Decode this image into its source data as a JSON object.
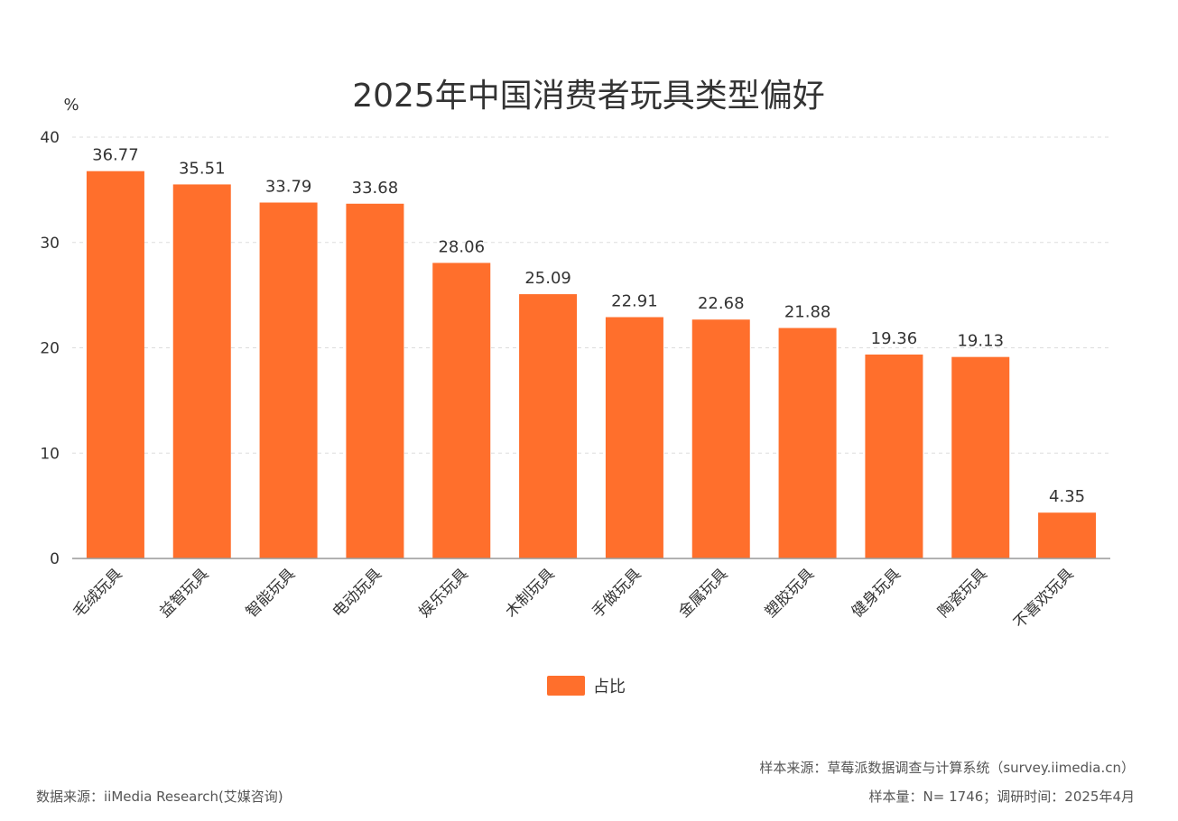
{
  "chart_data": {
    "type": "bar",
    "title": "2025年中国消费者玩具类型偏好",
    "ylabel": "%",
    "xlabel": "",
    "ylim": [
      0,
      40
    ],
    "yticks": [
      0,
      10,
      20,
      30,
      40
    ],
    "grid": true,
    "categories": [
      "毛绒玩具",
      "益智玩具",
      "智能玩具",
      "电动玩具",
      "娱乐玩具",
      "木制玩具",
      "手做玩具",
      "金属玩具",
      "塑胶玩具",
      "健身玩具",
      "陶瓷玩具",
      "不喜欢玩具"
    ],
    "series": [
      {
        "name": "占比",
        "values": [
          36.77,
          35.51,
          33.79,
          33.68,
          28.06,
          25.09,
          22.91,
          22.68,
          21.88,
          19.36,
          19.13,
          4.35
        ]
      }
    ],
    "value_labels": [
      "36.77",
      "35.51",
      "33.79",
      "33.68",
      "28.06",
      "25.09",
      "22.91",
      "22.68",
      "21.88",
      "19.36",
      "19.13",
      "4.35"
    ],
    "legend_position": "bottom-center",
    "colors": {
      "bar": "#FF6F2C",
      "grid": "#dddddd",
      "axis": "#999999",
      "text": "#333333"
    }
  },
  "footer": {
    "data_source": "数据来源：iiMedia Research(艾媒咨询)",
    "sample_source": "样本来源：草莓派数据调查与计算系统（survey.iimedia.cn）",
    "sample_size": "样本量：N= 1746；调研时间：2025年4月"
  }
}
